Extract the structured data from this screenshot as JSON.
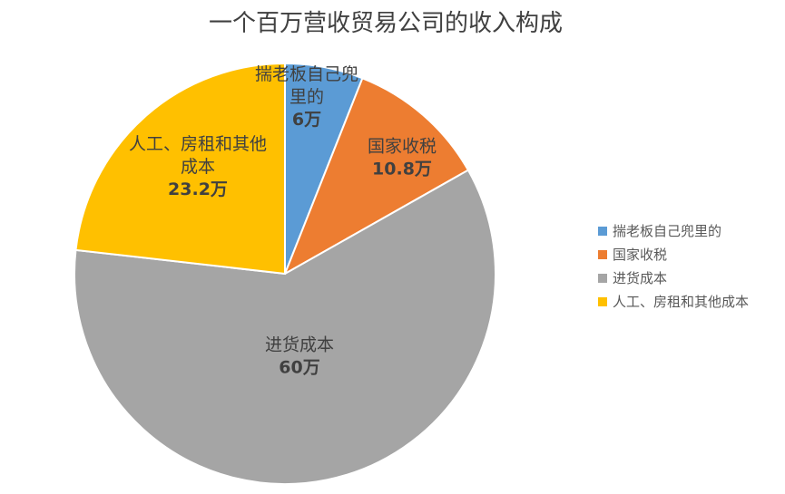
{
  "chart_data": {
    "type": "pie",
    "title": "一个百万营收贸易公司的收入构成",
    "unit": "万",
    "legend_position": "right",
    "slices": [
      {
        "label": "揣老板自己兜里的",
        "display_lines": [
          "揣老板自己兜",
          "里的"
        ],
        "value": 6,
        "value_label": "6万",
        "color": "#5B9BD5"
      },
      {
        "label": "国家收税",
        "display_lines": [
          "国家收税"
        ],
        "value": 10.8,
        "value_label": "10.8万",
        "color": "#ED7D31"
      },
      {
        "label": "进货成本",
        "display_lines": [
          "进货成本"
        ],
        "value": 60,
        "value_label": "60万",
        "color": "#A5A5A5"
      },
      {
        "label": "人工、房租和其他成本",
        "display_lines": [
          "人工、房租和其他",
          "成本"
        ],
        "value": 23.2,
        "value_label": "23.2万",
        "color": "#FFC000"
      }
    ]
  }
}
